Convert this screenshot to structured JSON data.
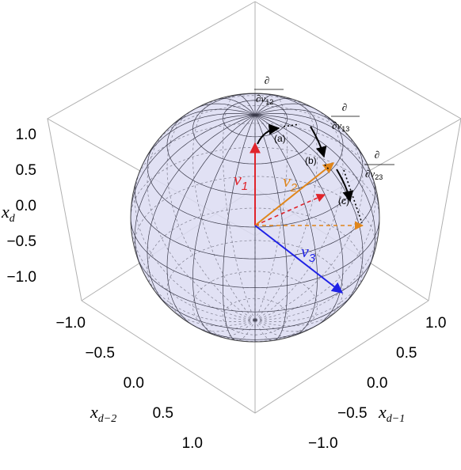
{
  "axes": {
    "z": {
      "label": "x",
      "sub": "d",
      "ticks": [
        "1.0",
        "0.5",
        "0.0",
        "−0.5",
        "−1.0"
      ]
    },
    "y": {
      "label": "x",
      "sub": "d−2",
      "ticks": [
        "−1.0",
        "−0.5",
        "0.0",
        "0.5",
        "1.0"
      ]
    },
    "x": {
      "label": "x",
      "sub": "d−1",
      "ticks": [
        "1.0",
        "0.5",
        "0.0",
        "−0.5",
        "−1.0"
      ]
    }
  },
  "vectors": {
    "v1": {
      "label": "v",
      "sub": "1",
      "color": "#e0242b"
    },
    "v2": {
      "label": "v",
      "sub": "2",
      "color": "#e0861b"
    },
    "v3": {
      "label": "v",
      "sub": "3",
      "color": "#1f22e6"
    }
  },
  "steps": {
    "a": "(a)",
    "b": "(b)",
    "c": "(c)"
  },
  "derivatives": {
    "d12": {
      "num": "∂",
      "den": "∂v",
      "sub": "12"
    },
    "d13": {
      "num": "∂",
      "den": "∂v",
      "sub": "13"
    },
    "d23": {
      "num": "∂",
      "den": "∂v",
      "sub": "23"
    }
  },
  "colors": {
    "sphere_fill": "#dcdcf2",
    "grid": "#3a3a4a",
    "box": "#b0b0b0"
  }
}
